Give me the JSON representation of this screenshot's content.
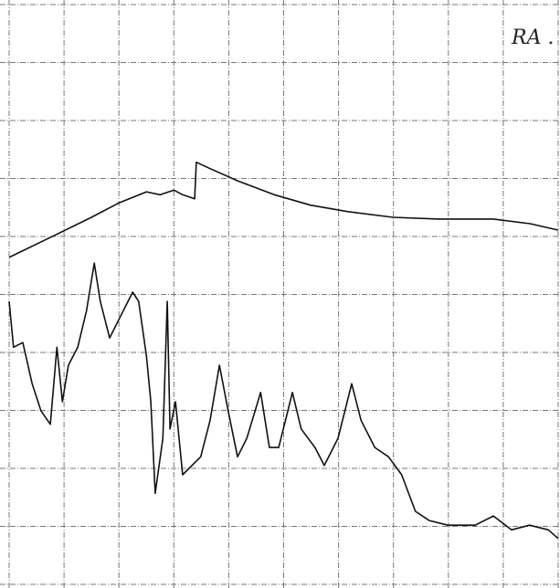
{
  "chart_data": {
    "type": "line",
    "annotation": "RA .",
    "xlim": [
      0,
      10
    ],
    "ylim": [
      0,
      10
    ],
    "xticks": [
      0,
      1,
      2,
      3,
      4,
      5,
      6,
      7,
      8,
      9,
      10
    ],
    "yticks": [
      0,
      1,
      2,
      3,
      4,
      5,
      6,
      7,
      8,
      9,
      10
    ],
    "grid": true,
    "series": [
      {
        "color": "#111111",
        "x": [
          0,
          0.83,
          1.5,
          2.0,
          2.5,
          2.75,
          3.0,
          3.16,
          3.38,
          3.41,
          3.66,
          4.16,
          4.83,
          5.49,
          6.16,
          6.99,
          7.82,
          8.82,
          9.49,
          10
        ],
        "values": [
          5.64,
          6.02,
          6.33,
          6.58,
          6.77,
          6.72,
          6.8,
          6.72,
          6.65,
          7.28,
          7.17,
          6.96,
          6.72,
          6.54,
          6.43,
          6.33,
          6.3,
          6.3,
          6.22,
          6.11
        ]
      },
      {
        "color": "#111111",
        "x": [
          0,
          0.08,
          0.25,
          0.42,
          0.58,
          0.75,
          0.87,
          0.97,
          1.08,
          1.25,
          1.41,
          1.55,
          1.66,
          1.83,
          2.0,
          2.25,
          2.36,
          2.5,
          2.58,
          2.66,
          2.8,
          2.88,
          2.93,
          3.03,
          3.16,
          3.33,
          3.49,
          3.66,
          3.83,
          3.99,
          4.16,
          4.33,
          4.58,
          4.74,
          4.91,
          5.16,
          5.32,
          5.57,
          5.74,
          5.99,
          6.24,
          6.41,
          6.66,
          6.91,
          7.15,
          7.4,
          7.65,
          7.99,
          8.49,
          8.82,
          9.15,
          9.48,
          9.82,
          10
        ],
        "values": [
          4.88,
          4.09,
          4.17,
          3.46,
          2.99,
          2.76,
          4.09,
          3.15,
          3.78,
          4.09,
          4.72,
          5.54,
          4.88,
          4.25,
          4.57,
          5.04,
          4.88,
          3.94,
          3.15,
          1.57,
          2.52,
          4.88,
          2.68,
          3.15,
          1.89,
          2.05,
          2.2,
          2.83,
          3.78,
          2.99,
          2.2,
          2.52,
          3.31,
          2.36,
          2.36,
          3.31,
          2.68,
          2.36,
          2.05,
          2.52,
          3.46,
          2.83,
          2.36,
          2.2,
          1.89,
          1.26,
          1.1,
          1.02,
          1.02,
          1.18,
          0.94,
          1.02,
          0.94,
          0.79
        ]
      }
    ]
  }
}
